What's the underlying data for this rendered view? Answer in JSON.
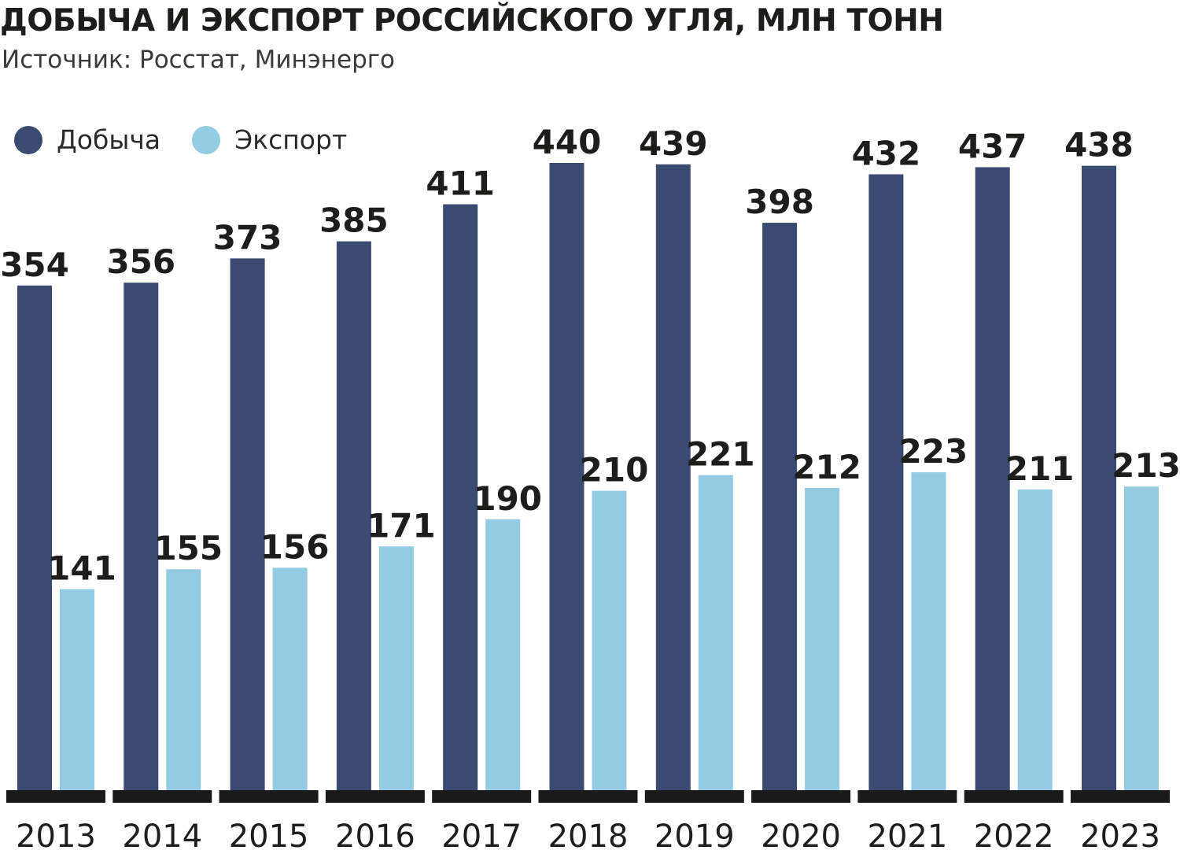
{
  "title": "ДОБЫЧА И ЭКСПОРТ РОССИЙСКОГО УГЛЯ, МЛН ТОНН",
  "subtitle": "Источник: Росстат, Минэнерго",
  "colors": {
    "production": "#3b4a70",
    "export": "#93cbe2",
    "baseline": "#1a1a1a",
    "text": "#1d1d1b"
  },
  "chart_data": {
    "type": "bar",
    "title": "ДОБЫЧА И ЭКСПОРТ РОССИЙСКОГО УГЛЯ, МЛН ТОНН",
    "xlabel": "",
    "ylabel": "",
    "ylim": [
      0,
      440
    ],
    "grid": false,
    "legend_position": "top-left",
    "categories": [
      "2013",
      "2014",
      "2015",
      "2016",
      "2017",
      "2018",
      "2019",
      "2020",
      "2021",
      "2022",
      "2023"
    ],
    "series": [
      {
        "name": "Добыча",
        "values": [
          354,
          356,
          373,
          385,
          411,
          440,
          439,
          398,
          432,
          437,
          438
        ]
      },
      {
        "name": "Экспорт",
        "values": [
          141,
          155,
          156,
          171,
          190,
          210,
          221,
          212,
          223,
          211,
          213
        ]
      }
    ]
  }
}
